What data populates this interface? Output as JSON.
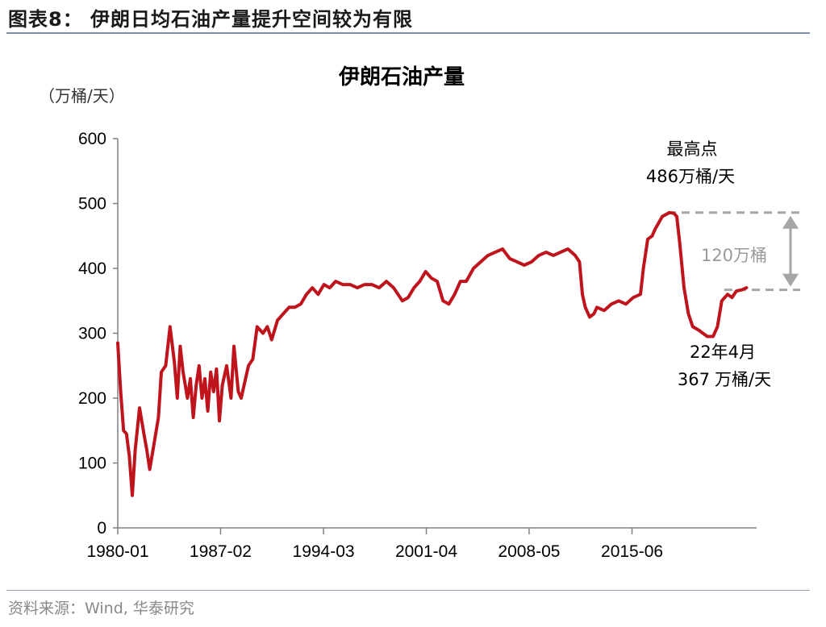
{
  "figure": {
    "label": "图表8：  伊朗日均石油产量提升空间较为有限",
    "source": "资料来源：Wind, 华泰研究"
  },
  "chart_data": {
    "type": "line",
    "title": "伊朗石油产量",
    "ylabel": "（万桶/天）",
    "xlabel": "",
    "ylim": [
      0,
      600
    ],
    "yticks": [
      0,
      100,
      200,
      300,
      400,
      500,
      600
    ],
    "xlim": [
      1980.0,
      2024.0
    ],
    "xtick_labels": [
      "1980-01",
      "1987-02",
      "1994-03",
      "2001-04",
      "2008-05",
      "2015-06"
    ],
    "xtick_positions": [
      1980.0,
      1987.08,
      1994.17,
      2001.25,
      2008.33,
      2015.42
    ],
    "grid": false,
    "legend": "none",
    "series": [
      {
        "color": "#c0141c",
        "x": [
          1980.0,
          1980.2,
          1980.4,
          1980.6,
          1980.8,
          1981.0,
          1981.2,
          1981.5,
          1981.8,
          1982.0,
          1982.2,
          1982.5,
          1982.8,
          1983.0,
          1983.3,
          1983.6,
          1983.9,
          1984.1,
          1984.3,
          1984.5,
          1984.8,
          1985.0,
          1985.2,
          1985.4,
          1985.6,
          1985.8,
          1986.0,
          1986.2,
          1986.4,
          1986.6,
          1986.8,
          1987.0,
          1987.2,
          1987.5,
          1987.8,
          1988.0,
          1988.3,
          1988.5,
          1988.8,
          1989.0,
          1989.3,
          1989.6,
          1990.0,
          1990.3,
          1990.6,
          1991.0,
          1991.4,
          1991.8,
          1992.2,
          1992.6,
          1993.0,
          1993.4,
          1993.8,
          1994.2,
          1994.6,
          1995.0,
          1995.5,
          1996.0,
          1996.5,
          1997.0,
          1997.5,
          1998.0,
          1998.5,
          1999.0,
          1999.3,
          1999.6,
          2000.0,
          2000.4,
          2000.8,
          2001.2,
          2001.6,
          2002.0,
          2002.4,
          2002.8,
          2003.2,
          2003.6,
          2004.0,
          2004.5,
          2005.0,
          2005.5,
          2006.0,
          2006.5,
          2007.0,
          2007.5,
          2008.0,
          2008.5,
          2009.0,
          2009.5,
          2010.0,
          2010.5,
          2011.0,
          2011.5,
          2011.8,
          2012.0,
          2012.2,
          2012.5,
          2012.8,
          2013.0,
          2013.5,
          2014.0,
          2014.5,
          2015.0,
          2015.5,
          2016.0,
          2016.2,
          2016.5,
          2016.8,
          2017.0,
          2017.5,
          2018.0,
          2018.3,
          2018.5,
          2018.7,
          2019.0,
          2019.3,
          2019.6,
          2020.0,
          2020.3,
          2020.6,
          2021.0,
          2021.3,
          2021.6,
          2022.0,
          2022.3,
          2022.6,
          2023.0,
          2023.3
        ],
        "values": [
          285,
          210,
          150,
          145,
          110,
          50,
          120,
          185,
          145,
          120,
          90,
          130,
          170,
          240,
          250,
          310,
          255,
          200,
          280,
          240,
          200,
          230,
          170,
          220,
          250,
          200,
          230,
          180,
          240,
          210,
          245,
          165,
          220,
          250,
          200,
          280,
          210,
          200,
          230,
          250,
          260,
          310,
          300,
          310,
          290,
          320,
          330,
          340,
          340,
          345,
          360,
          370,
          360,
          375,
          370,
          380,
          375,
          375,
          370,
          375,
          375,
          370,
          380,
          370,
          360,
          350,
          355,
          370,
          380,
          395,
          385,
          380,
          350,
          345,
          360,
          380,
          380,
          400,
          410,
          420,
          425,
          430,
          415,
          410,
          405,
          410,
          420,
          425,
          420,
          425,
          430,
          420,
          410,
          360,
          340,
          325,
          330,
          340,
          335,
          345,
          350,
          345,
          355,
          360,
          400,
          445,
          450,
          460,
          480,
          486,
          485,
          480,
          440,
          370,
          330,
          310,
          305,
          300,
          295,
          295,
          310,
          350,
          360,
          355,
          365,
          367,
          370
        ]
      }
    ],
    "annotations": {
      "peak_title": "最高点",
      "peak_value_num": "486",
      "peak_value_unit": "万桶/天",
      "diff_label": "120万桶",
      "latest_date": "22年4月",
      "latest_value_num": "367",
      "latest_value_unit": "万桶/天",
      "peak_level": 486,
      "latest_level": 367
    }
  }
}
